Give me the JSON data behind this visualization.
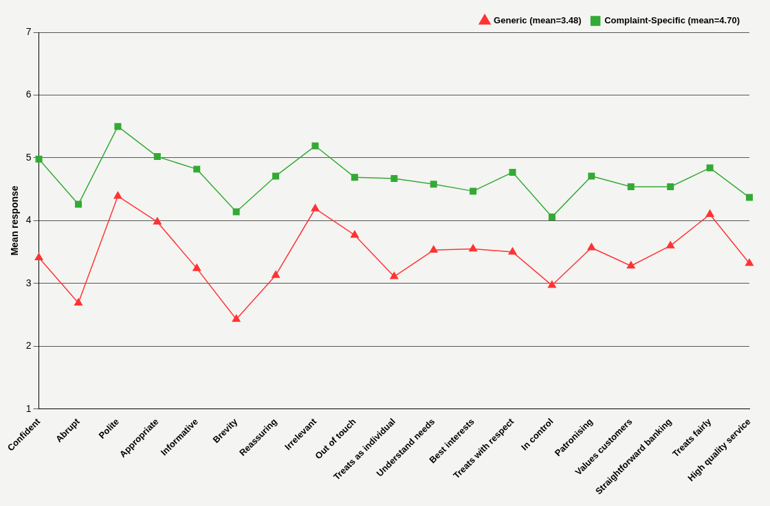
{
  "chart_data": {
    "type": "line",
    "ylabel": "Mean response",
    "categories": [
      "Confident",
      "Abrupt",
      "Polite",
      "Appropriate",
      "Informative",
      "Brevity",
      "Reassuring",
      "Irrelevant",
      "Out of touch",
      "Treats as individual",
      "Understand needs",
      "Best interests",
      "Treats with respect",
      "In control",
      "Patronising",
      "Values customers",
      "Straightforward banking",
      "Treats fairly",
      "High quality service"
    ],
    "series": [
      {
        "name": "Generic (mean=3.48)",
        "color": "#ff3333",
        "marker": "triangle",
        "values": [
          3.41,
          2.69,
          4.39,
          3.98,
          3.24,
          2.43,
          3.13,
          4.19,
          3.77,
          3.11,
          3.53,
          3.55,
          3.5,
          2.97,
          3.57,
          3.28,
          3.6,
          4.1,
          3.32
        ]
      },
      {
        "name": "Complaint-Specific (mean=4.70)",
        "color": "#33aa33",
        "marker": "square",
        "values": [
          4.98,
          4.26,
          5.5,
          5.02,
          4.82,
          4.14,
          4.71,
          5.19,
          4.69,
          4.67,
          4.58,
          4.47,
          4.77,
          4.06,
          4.71,
          4.54,
          4.54,
          4.84,
          4.37
        ]
      }
    ],
    "ylim": [
      1,
      7
    ],
    "yticks": [
      1,
      2,
      3,
      4,
      5,
      6,
      7
    ],
    "grid": "y",
    "legend": "top right",
    "line_style": "solid"
  }
}
